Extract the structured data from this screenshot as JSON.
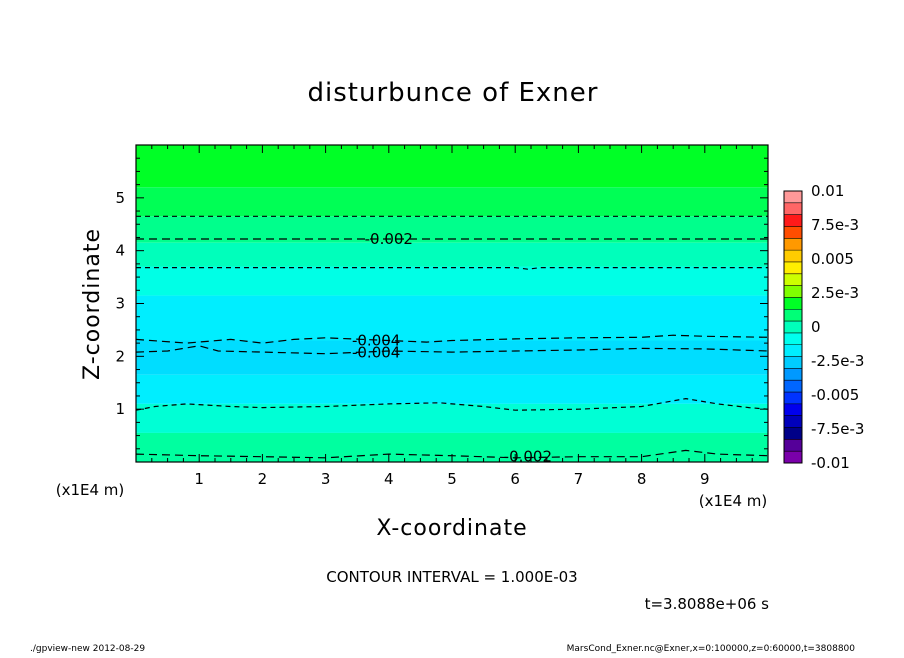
{
  "chart_data": {
    "type": "heatmap",
    "title": "disturbunce of Exner",
    "xlabel": "X-coordinate",
    "ylabel": "Z-coordinate",
    "x_unit_label": "(x1E4 m)",
    "y_unit_label": "(x1E4 m)",
    "xlim": [
      0,
      10
    ],
    "ylim": [
      0,
      6
    ],
    "x_ticks": [
      1,
      2,
      3,
      4,
      5,
      6,
      7,
      8,
      9
    ],
    "y_ticks": [
      1,
      2,
      3,
      4,
      5
    ],
    "contour_interval_text": "CONTOUR INTERVAL = 1.000E-03",
    "time_text": "t=3.8088e+06 s",
    "colorbar": {
      "labels": [
        "0.01",
        "7.5e-3",
        "0.005",
        "2.5e-3",
        "0",
        "-2.5e-3",
        "-0.005",
        "-7.5e-3",
        "-0.01"
      ],
      "colors": [
        "#ff9999",
        "#ff6666",
        "#ff1a1a",
        "#ff4d00",
        "#ff9900",
        "#ffcc00",
        "#ffee00",
        "#ccff00",
        "#80ff00",
        "#00ff26",
        "#00ff77",
        "#00ffbb",
        "#00ffee",
        "#00eeff",
        "#00ccff",
        "#0099ff",
        "#0066ff",
        "#0033ff",
        "#0000ee",
        "#0000bb",
        "#000088",
        "#550099",
        "#7a00aa"
      ]
    },
    "fill_bands": [
      {
        "z_from": 5.2,
        "z_to": 6.0,
        "color": "#00ff26"
      },
      {
        "z_from": 4.65,
        "z_to": 5.2,
        "color": "#00ff55"
      },
      {
        "z_from": 4.15,
        "z_to": 4.65,
        "color": "#00ff8c"
      },
      {
        "z_from": 3.7,
        "z_to": 4.15,
        "color": "#00ffbb"
      },
      {
        "z_from": 3.15,
        "z_to": 3.7,
        "color": "#00ffe6"
      },
      {
        "z_from": 2.3,
        "z_to": 3.15,
        "color": "#00eeff"
      },
      {
        "z_from": 1.65,
        "z_to": 2.3,
        "color": "#00ddff"
      },
      {
        "z_from": 1.1,
        "z_to": 1.65,
        "color": "#00eeff"
      },
      {
        "z_from": 0.55,
        "z_to": 1.1,
        "color": "#00ffd5"
      },
      {
        "z_from": 0.0,
        "z_to": 0.55,
        "color": "#00ffa0"
      }
    ],
    "contours": [
      {
        "level": "-0.001",
        "label": "",
        "dash": "5,4",
        "points": [
          [
            0,
            4.65
          ],
          [
            10,
            4.65
          ]
        ]
      },
      {
        "level": "-0.002",
        "label": "-0.002",
        "label_at": [
          4.0,
          4.22
        ],
        "dash": "8,5",
        "points": [
          [
            0,
            4.22
          ],
          [
            10,
            4.22
          ]
        ]
      },
      {
        "level": "-0.003",
        "label": "",
        "dash": "5,4",
        "points": [
          [
            0,
            3.68
          ],
          [
            6,
            3.68
          ],
          [
            6.2,
            3.65
          ],
          [
            6.4,
            3.68
          ],
          [
            10,
            3.68
          ]
        ]
      },
      {
        "level": "-0.004",
        "label": "-0.004",
        "label_at": [
          3.8,
          2.3
        ],
        "dash": "8,5",
        "points": [
          [
            0,
            2.32
          ],
          [
            0.8,
            2.25
          ],
          [
            1.5,
            2.32
          ],
          [
            2,
            2.25
          ],
          [
            2.5,
            2.32
          ],
          [
            3,
            2.35
          ],
          [
            4,
            2.3
          ],
          [
            4.6,
            2.27
          ],
          [
            5,
            2.3
          ],
          [
            6,
            2.33
          ],
          [
            7,
            2.35
          ],
          [
            8,
            2.36
          ],
          [
            8.5,
            2.4
          ],
          [
            9,
            2.38
          ],
          [
            10,
            2.36
          ]
        ]
      },
      {
        "level": "-0.004",
        "label": "-0.004",
        "label_at": [
          3.8,
          2.07
        ],
        "dash": "8,5",
        "points": [
          [
            0,
            2.08
          ],
          [
            0.5,
            2.1
          ],
          [
            1,
            2.2
          ],
          [
            1.3,
            2.1
          ],
          [
            2,
            2.08
          ],
          [
            3,
            2.05
          ],
          [
            4,
            2.1
          ],
          [
            5,
            2.08
          ],
          [
            6,
            2.1
          ],
          [
            7,
            2.12
          ],
          [
            8,
            2.15
          ],
          [
            9,
            2.14
          ],
          [
            10,
            2.1
          ]
        ]
      },
      {
        "level": "-0.003",
        "label": "",
        "dash": "5,4",
        "points": [
          [
            0,
            0.98
          ],
          [
            0.3,
            1.05
          ],
          [
            0.8,
            1.1
          ],
          [
            1.5,
            1.05
          ],
          [
            2,
            1.03
          ],
          [
            3,
            1.05
          ],
          [
            4,
            1.1
          ],
          [
            4.8,
            1.12
          ],
          [
            5.5,
            1.05
          ],
          [
            6,
            0.98
          ],
          [
            7,
            1.0
          ],
          [
            8,
            1.05
          ],
          [
            8.7,
            1.2
          ],
          [
            9.2,
            1.1
          ],
          [
            9.7,
            1.03
          ],
          [
            10,
            1.0
          ]
        ]
      },
      {
        "level": "-0.002",
        "label": "-0.002",
        "label_at": [
          6.2,
          0.1
        ],
        "dash": "8,5",
        "points": [
          [
            0,
            0.15
          ],
          [
            1,
            0.12
          ],
          [
            2,
            0.1
          ],
          [
            3,
            0.08
          ],
          [
            4,
            0.15
          ],
          [
            5,
            0.12
          ],
          [
            6,
            0.08
          ],
          [
            7,
            0.1
          ],
          [
            8,
            0.1
          ],
          [
            8.7,
            0.22
          ],
          [
            9.2,
            0.15
          ],
          [
            10,
            0.12
          ]
        ]
      }
    ]
  },
  "footer": {
    "left": "./gpview-new   2012-08-29",
    "right": "MarsCond_Exner.nc@Exner,x=0:100000,z=0:60000,t=3808800"
  }
}
